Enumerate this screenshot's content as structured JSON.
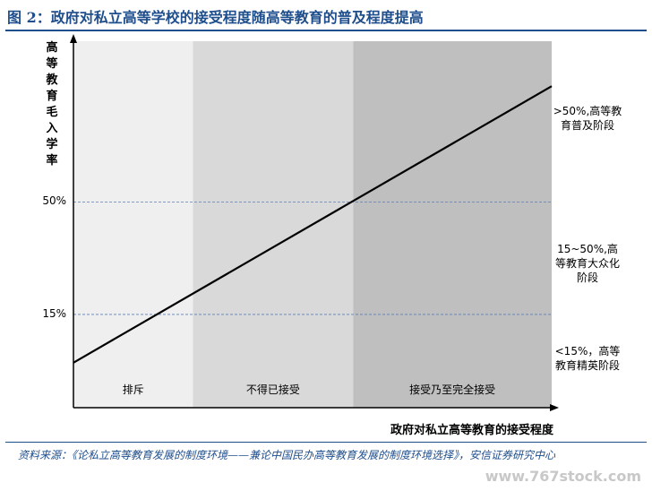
{
  "title": "图 2：政府对私立高等学校的接受程度随高等教育的普及程度提高",
  "chart_data": {
    "type": "line",
    "title": "图 2：政府对私立高等学校的接受程度随高等教育的普及程度提高",
    "xlabel": "政府对私立高等教育的接受程度",
    "ylabel": "高等教育毛入学率",
    "y_ticks": [
      {
        "value": 15,
        "label": "15%"
      },
      {
        "value": 50,
        "label": "50%"
      }
    ],
    "zones": [
      {
        "label": "排斥",
        "x_start": 0,
        "x_end": 0.25,
        "color": "#efefef"
      },
      {
        "label": "不得已接受",
        "x_start": 0.25,
        "x_end": 0.585,
        "color": "#d9d9d9"
      },
      {
        "label": "接受乃至完全接受",
        "x_start": 0.585,
        "x_end": 1.0,
        "color": "#bfbfbf"
      }
    ],
    "line": {
      "x": [
        0,
        1
      ],
      "y": [
        0,
        86
      ]
    },
    "ylim": [
      -14,
      100
    ],
    "xlim": [
      0,
      1
    ],
    "stages": [
      {
        "label": ">50%,高等教育普及阶段"
      },
      {
        "label": "15~50%,高等教育大众化阶段"
      },
      {
        "label": "<15%，高等教育精英阶段"
      }
    ]
  },
  "source": "资料来源：《论私立高等教育发展的制度环境——兼论中国民办高等教育发展的制度环境选择》，安信证券研究中心",
  "watermark": "www.767stock.com"
}
